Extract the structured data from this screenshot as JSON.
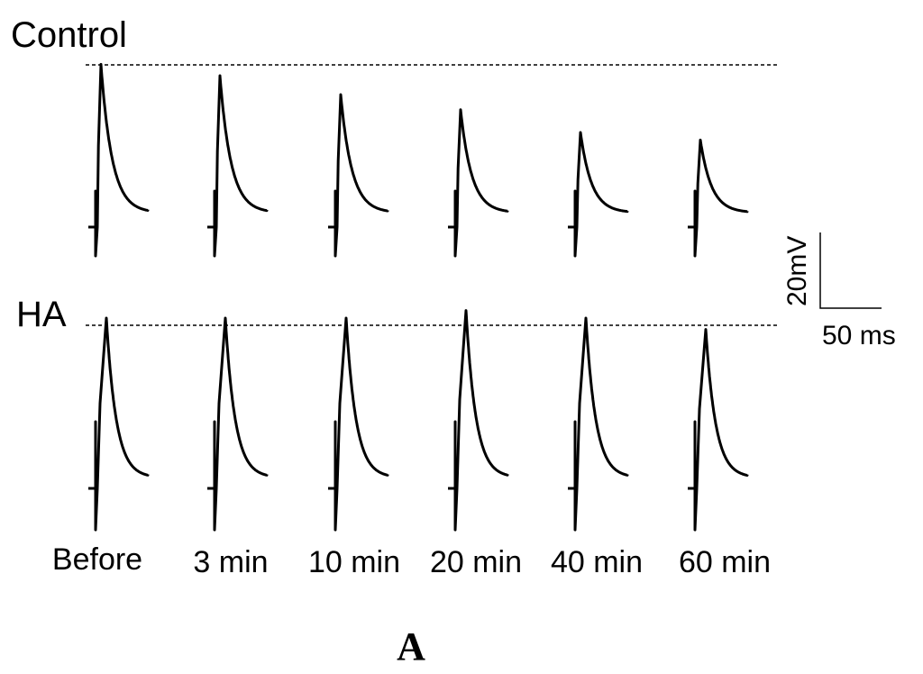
{
  "rows": [
    {
      "label": "Control",
      "peaks": [
        -22,
        -25,
        -30,
        -34,
        -40,
        -42
      ]
    },
    {
      "label": "HA",
      "peaks": [
        -20,
        -20,
        -20,
        -18,
        -20,
        -23
      ]
    }
  ],
  "timepoints": [
    "Before",
    "3 min",
    "10 min",
    "20 min",
    "40 min",
    "60 min"
  ],
  "scale_bar": {
    "voltage": "20mV",
    "time": "50 ms"
  },
  "panel_label": "A"
}
